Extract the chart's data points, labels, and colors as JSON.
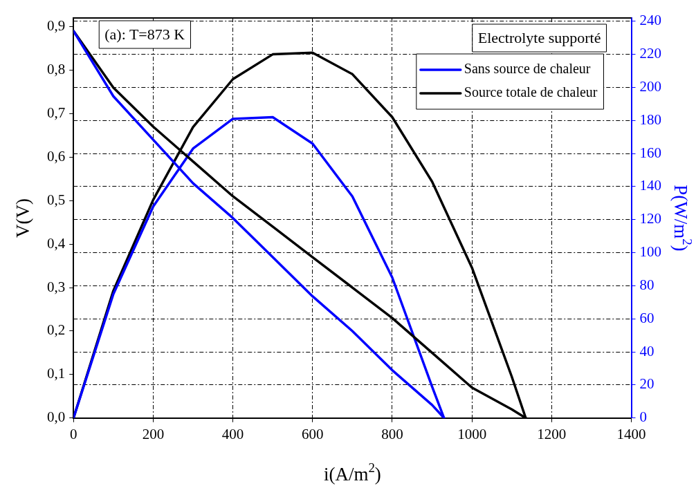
{
  "chart_data": {
    "type": "line",
    "xlabel": "i(A/m$^{2}$)",
    "ylabel": "V(V)",
    "y2label": "P(W/m$^{2}$)",
    "annotations": [
      "(a): T=873 K",
      "Electrolyte supporté"
    ],
    "series": [
      {
        "name": "Sans source de chaleur",
        "color": "#0000ff",
        "x": [
          0,
          100,
          200,
          300,
          400,
          500,
          600,
          700,
          800,
          900,
          930
        ],
        "values": [
          0.89,
          0.74,
          0.64,
          0.54,
          0.46,
          0.37,
          0.28,
          0.2,
          0.11,
          0.03,
          0
        ]
      },
      {
        "name": "Source totale de chaleur",
        "color": "#000000",
        "x": [
          0,
          100,
          200,
          300,
          400,
          500,
          600,
          700,
          800,
          900,
          1000,
          1100,
          1135
        ],
        "values": [
          0.89,
          0.76,
          0.67,
          0.59,
          0.51,
          0.44,
          0.37,
          0.3,
          0.23,
          0.15,
          0.07,
          0.02,
          0
        ]
      },
      {
        "color": "#0000ff",
        "axis": "y2",
        "x": [
          0,
          100,
          200,
          300,
          400,
          500,
          600,
          700,
          800,
          900,
          930
        ],
        "values": [
          0,
          75,
          128,
          163,
          181,
          182,
          166,
          134,
          85,
          19,
          0
        ]
      },
      {
        "color": "#000000",
        "axis": "y2",
        "x": [
          0,
          100,
          200,
          300,
          400,
          500,
          600,
          700,
          800,
          900,
          1000,
          1100,
          1135
        ],
        "values": [
          0,
          77,
          132,
          176,
          205,
          220,
          221,
          208,
          182,
          143,
          91,
          25,
          0
        ]
      }
    ],
    "xlim": [
      0,
      1400
    ],
    "xticks": [
      0,
      200,
      400,
      600,
      800,
      1000,
      1200,
      1400
    ],
    "ylim": [
      0,
      0.92
    ],
    "yticks": [
      {
        "value": 0,
        "label": "0,0"
      },
      {
        "value": 0.1,
        "label": "0,1"
      },
      {
        "value": 0.2,
        "label": "0,2"
      },
      {
        "value": 0.3,
        "label": "0,3"
      },
      {
        "value": 0.4,
        "label": "0,4"
      },
      {
        "value": 0.5,
        "label": "0,5"
      },
      {
        "value": 0.6,
        "label": "0,6"
      },
      {
        "value": 0.7,
        "label": "0,7"
      },
      {
        "value": 0.8,
        "label": "0,8"
      },
      {
        "value": 0.9,
        "label": "0,9"
      }
    ],
    "y2lim": [
      0,
      242
    ],
    "y2ticks": [
      0,
      20,
      40,
      60,
      80,
      100,
      120,
      140,
      160,
      180,
      200,
      220,
      240
    ],
    "grid": [
      "x",
      "y2"
    ],
    "legend": "top right",
    "marker": "none",
    "line_style": "solid"
  }
}
